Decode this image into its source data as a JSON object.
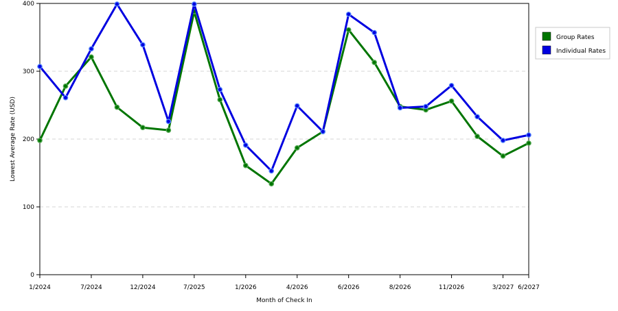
{
  "chart_data": {
    "type": "line",
    "title": "",
    "xlabel": "Month of Check In",
    "ylabel": "Lowest Average Rate (USD)",
    "ylim": [
      0,
      400
    ],
    "y_ticks": [
      0,
      100,
      200,
      300,
      400
    ],
    "grid": "horizontal dashed",
    "legend_position": "top-right",
    "x_tick_labels": [
      "1/2024",
      "7/2024",
      "12/2024",
      "7/2025",
      "1/2026",
      "4/2026",
      "6/2026",
      "8/2026",
      "11/2026",
      "3/2027",
      "6/2027"
    ],
    "x_tick_indices": [
      0,
      2,
      4,
      6,
      8,
      10,
      12,
      14,
      16,
      18,
      19
    ],
    "series": [
      {
        "name": "Group Rates",
        "color": "#007500",
        "values": [
          198,
          278,
          321,
          247,
          217,
          213,
          388,
          258,
          161,
          134,
          187,
          211,
          361,
          313,
          248,
          243,
          256,
          204,
          175,
          194
        ]
      },
      {
        "name": "Individual Rates",
        "color": "#0000e0",
        "values": [
          307,
          261,
          333,
          399,
          339,
          226,
          399,
          273,
          191,
          153,
          249,
          211,
          384,
          357,
          246,
          248,
          279,
          233,
          198,
          206
        ]
      }
    ]
  }
}
